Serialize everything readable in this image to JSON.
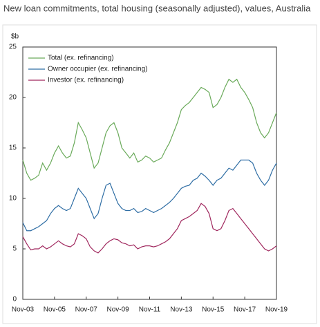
{
  "chart_data": {
    "type": "line",
    "title": "New loan commitments, total housing (seasonally adjusted), values, Australia",
    "y_label": "$b",
    "categories": [
      "Nov-03",
      null,
      null,
      null,
      null,
      null,
      null,
      null,
      "Nov-05",
      null,
      null,
      null,
      null,
      null,
      null,
      null,
      "Nov-07",
      null,
      null,
      null,
      null,
      null,
      null,
      null,
      "Nov-09",
      null,
      null,
      null,
      null,
      null,
      null,
      null,
      "Nov-11",
      null,
      null,
      null,
      null,
      null,
      null,
      null,
      "Nov-13",
      null,
      null,
      null,
      null,
      null,
      null,
      null,
      "Nov-15",
      null,
      null,
      null,
      null,
      null,
      null,
      null,
      "Nov-17",
      null,
      null,
      null,
      null,
      null,
      null,
      null,
      "Nov-19"
    ],
    "series": [
      {
        "name": "Total (ex. refinancing)",
        "color": "#6aaa5a",
        "values": [
          13.8,
          12.5,
          11.8,
          12.0,
          12.3,
          13.5,
          12.8,
          13.5,
          14.5,
          15.2,
          14.5,
          14.0,
          14.2,
          15.5,
          17.5,
          16.8,
          16.0,
          14.5,
          13.0,
          13.5,
          15.0,
          16.5,
          17.2,
          17.5,
          16.5,
          15.0,
          14.5,
          14.0,
          14.5,
          13.6,
          13.8,
          14.2,
          14.0,
          13.6,
          13.8,
          14.0,
          14.8,
          15.5,
          16.5,
          17.5,
          18.8,
          19.2,
          19.5,
          20.0,
          20.5,
          21.0,
          20.8,
          20.5,
          19.0,
          19.3,
          20.0,
          21.0,
          21.8,
          21.5,
          21.8,
          21.0,
          20.5,
          19.8,
          19.0,
          17.5,
          16.5,
          16.0,
          16.5,
          17.5,
          18.5
        ]
      },
      {
        "name": "Owner occupier (ex. refinancing)",
        "color": "#2e6da4",
        "values": [
          7.6,
          6.8,
          6.8,
          7.0,
          7.2,
          7.5,
          7.8,
          8.5,
          9.0,
          9.3,
          9.0,
          8.8,
          9.0,
          10.0,
          11.0,
          10.5,
          10.0,
          9.0,
          8.0,
          8.5,
          10.0,
          11.3,
          11.5,
          10.5,
          9.5,
          9.0,
          8.8,
          8.8,
          9.0,
          8.6,
          8.7,
          9.0,
          8.8,
          8.6,
          8.8,
          9.0,
          9.3,
          9.6,
          10.0,
          10.5,
          11.0,
          11.2,
          11.3,
          11.8,
          12.0,
          12.5,
          12.2,
          11.8,
          11.3,
          11.8,
          12.0,
          12.5,
          13.0,
          12.8,
          13.3,
          13.8,
          13.8,
          13.8,
          13.5,
          12.5,
          11.8,
          11.3,
          11.8,
          12.8,
          13.5
        ]
      },
      {
        "name": "Investor (ex. refinancing)",
        "color": "#a0285e",
        "values": [
          6.2,
          5.5,
          4.9,
          5.0,
          5.0,
          5.3,
          5.0,
          5.2,
          5.5,
          5.8,
          5.5,
          5.3,
          5.2,
          5.5,
          6.5,
          6.3,
          6.0,
          5.2,
          4.8,
          4.6,
          5.0,
          5.5,
          5.8,
          6.0,
          5.9,
          5.6,
          5.5,
          5.3,
          5.4,
          5.0,
          5.2,
          5.3,
          5.3,
          5.2,
          5.3,
          5.5,
          5.7,
          6.0,
          6.5,
          7.0,
          7.8,
          8.0,
          8.2,
          8.5,
          8.8,
          9.5,
          9.2,
          8.5,
          7.0,
          6.8,
          7.0,
          7.8,
          8.8,
          9.0,
          8.5,
          8.0,
          7.5,
          7.0,
          6.5,
          6.0,
          5.5,
          5.0,
          4.8,
          5.0,
          5.3
        ]
      }
    ],
    "ylim": [
      0,
      25
    ],
    "yticks": [
      0,
      5,
      10,
      15,
      20,
      25
    ],
    "grid": false,
    "legend": "top-left"
  }
}
